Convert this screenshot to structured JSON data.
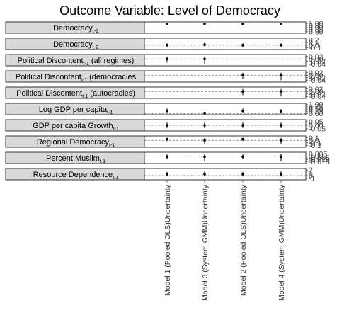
{
  "chart_data": {
    "type": "scatter",
    "title": "Outcome Variable: Level of Democracy",
    "models": [
      "Model 1 (Pooled OLS)Uncertainty",
      "Model 3 (System GMM)Uncertainty",
      "Model 2 (Pooled OLS)Uncertainty",
      "Model 4 (System GMM)Uncertainty"
    ],
    "panels": [
      {
        "label": "Democracy",
        "sub": "t-1",
        "ticks": [
          "1.00",
          "0.95",
          "0.90",
          "0.85",
          "0.80"
        ],
        "ylim": [
          0.78,
          1.02
        ],
        "estimates": [
          0.99,
          0.99,
          0.99,
          0.99
        ],
        "lower": [
          0.97,
          0.98,
          0.97,
          0.98
        ],
        "upper": [
          1.0,
          1.0,
          1.0,
          1.0
        ]
      },
      {
        "label": "Democracy",
        "sub": "t-2",
        "ticks": [
          "0.2",
          "0.1",
          "0.0",
          "-0.1"
        ],
        "ylim": [
          -0.14,
          0.24
        ],
        "estimates": [
          0.0,
          0.02,
          0.0,
          0.0
        ],
        "lower": [
          -0.07,
          -0.05,
          -0.07,
          -0.06
        ],
        "upper": [
          0.07,
          0.09,
          0.07,
          0.07
        ]
      },
      {
        "label": "Political Discontent",
        "sub": "t-1",
        "suffix": " (all regimes)",
        "ticks": [
          "0.02",
          "0.00",
          "-0.02",
          "-0.04"
        ],
        "ylim": [
          -0.05,
          0.03
        ],
        "estimates": [
          0.0,
          0.0,
          null,
          null
        ],
        "lower": [
          -0.03,
          -0.04,
          null,
          null
        ],
        "upper": [
          0.02,
          0.02,
          null,
          null
        ]
      },
      {
        "label": "Political Discontent",
        "sub": "t-1",
        "suffix": " (democracies",
        "ticks": [
          "0.02",
          "0.00",
          "-0.02",
          "-0.04"
        ],
        "ylim": [
          -0.05,
          0.03
        ],
        "estimates": [
          null,
          null,
          0.0,
          0.0
        ],
        "lower": [
          null,
          null,
          -0.03,
          -0.04
        ],
        "upper": [
          null,
          null,
          0.02,
          0.02
        ]
      },
      {
        "label": "Political Discontent",
        "sub": "t-1",
        "suffix": " (autocracies)",
        "ticks": [
          "0.02",
          "0.00",
          "-0.02",
          "-0.04"
        ],
        "ylim": [
          -0.05,
          0.03
        ],
        "estimates": [
          null,
          null,
          0.0,
          0.0
        ],
        "lower": [
          null,
          null,
          -0.03,
          -0.04
        ],
        "upper": [
          null,
          null,
          0.02,
          0.02
        ]
      },
      {
        "label": "Log GDP per capita",
        "sub": "t-1",
        "ticks": [
          "1.00",
          "0.75",
          "0.50",
          "0.25",
          "0.00"
        ],
        "ylim": [
          -0.05,
          1.05
        ],
        "estimates": [
          0.3,
          0.05,
          0.3,
          0.25
        ],
        "lower": [
          0.05,
          0.0,
          0.05,
          0.0
        ],
        "upper": [
          0.55,
          0.1,
          0.55,
          0.5
        ]
      },
      {
        "label": "GDP per capita Growth",
        "sub": "t-1",
        "ticks": [
          "0.05",
          "0.00",
          "-0.05"
        ],
        "ylim": [
          -0.07,
          0.07
        ],
        "estimates": [
          0.0,
          0.0,
          0.0,
          0.0
        ],
        "lower": [
          -0.04,
          -0.04,
          -0.04,
          -0.04
        ],
        "upper": [
          0.04,
          0.04,
          0.04,
          0.04
        ]
      },
      {
        "label": "Regional Democracy",
        "sub": "t-1",
        "ticks": [
          "0.1",
          "0.0",
          "-0.1",
          "-0.2"
        ],
        "ylim": [
          -0.25,
          0.15
        ],
        "estimates": [
          0.05,
          0.0,
          0.05,
          0.0
        ],
        "lower": [
          -0.03,
          -0.15,
          -0.03,
          -0.15
        ],
        "upper": [
          0.1,
          0.1,
          0.1,
          0.1
        ]
      },
      {
        "label": "Percent Muslim",
        "sub": "t-1",
        "ticks": [
          "0.005",
          "0.000",
          "-0.005",
          "-0.010",
          "-0.015"
        ],
        "ylim": [
          -0.018,
          0.008
        ],
        "estimates": [
          -0.002,
          -0.002,
          -0.002,
          -0.002
        ],
        "lower": [
          -0.008,
          -0.014,
          -0.008,
          -0.014
        ],
        "upper": [
          0.004,
          0.006,
          0.004,
          0.006
        ]
      },
      {
        "label": "Resource Dependence",
        "sub": "t-1",
        "ticks": [
          "2",
          "1",
          "0",
          "-1"
        ],
        "ylim": [
          -1.3,
          2.3
        ],
        "estimates": [
          0.5,
          0.5,
          0.5,
          0.5
        ],
        "lower": [
          -0.3,
          -0.3,
          -0.3,
          -0.3
        ],
        "upper": [
          1.3,
          1.6,
          1.3,
          1.6
        ]
      }
    ]
  }
}
